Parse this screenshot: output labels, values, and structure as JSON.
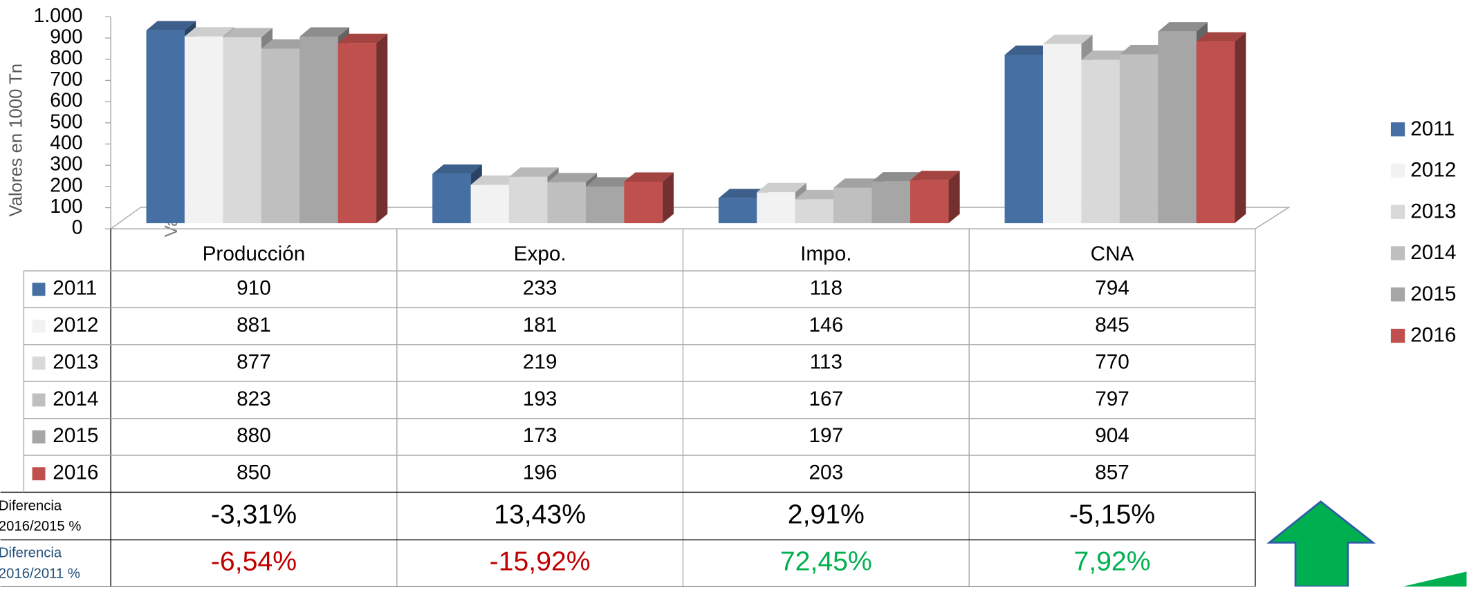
{
  "chart_data": {
    "type": "bar3d",
    "y_axis_label": "Valores en 1000 Tn",
    "categories": [
      "Producción",
      "Expo.",
      "Impo.",
      "CNA"
    ],
    "series": [
      {
        "name": "2011",
        "color": "#4670a3",
        "values": [
          910,
          233,
          118,
          794
        ]
      },
      {
        "name": "2012",
        "color": "#f2f2f2",
        "values": [
          881,
          181,
          146,
          845
        ]
      },
      {
        "name": "2013",
        "color": "#d9d9d9",
        "values": [
          877,
          219,
          113,
          770
        ]
      },
      {
        "name": "2014",
        "color": "#bfbfbf",
        "values": [
          823,
          193,
          167,
          797
        ]
      },
      {
        "name": "2015",
        "color": "#a6a6a6",
        "values": [
          880,
          173,
          197,
          904
        ]
      },
      {
        "name": "2016",
        "color": "#c0504d",
        "values": [
          850,
          196,
          203,
          857
        ]
      }
    ],
    "ylim": [
      0,
      1000
    ],
    "yticks": [
      0,
      100,
      200,
      300,
      400,
      500,
      600,
      700,
      800,
      900,
      {
        "value": 1000,
        "label": "1.000"
      }
    ],
    "legend": "right",
    "diff_rows": [
      {
        "label": "Diferencia 2016/2015 %",
        "label_color": "#000000",
        "values": [
          -3.31,
          13.43,
          2.91,
          -5.15
        ],
        "value_labels": [
          "-3,31%",
          "13,43%",
          "2,91%",
          "-5,15%"
        ],
        "colors": [
          "#000000",
          "#000000",
          "#000000",
          "#000000"
        ]
      },
      {
        "label": "Diferencia 2016/2011 %",
        "label_color": "#1f4e79",
        "values": [
          -6.54,
          -15.92,
          72.45,
          7.92
        ],
        "value_labels": [
          "-6,54%",
          "-15,92%",
          "72,45%",
          "7,92%"
        ],
        "colors": [
          "#c00000",
          "#c00000",
          "#00b050",
          "#00b050"
        ]
      }
    ]
  }
}
